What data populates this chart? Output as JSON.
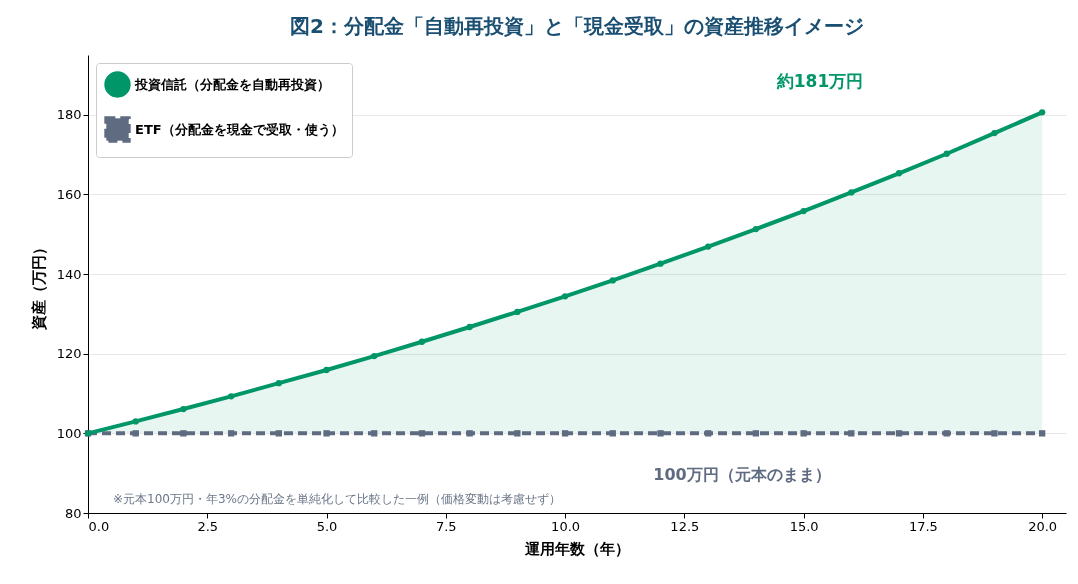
{
  "chart_data": {
    "type": "line",
    "title": "図2：分配金「自動再投資」と「現金受取」の資産推移イメージ",
    "xlabel": "運用年数（年）",
    "ylabel": "資産（万円）",
    "x": [
      0,
      1,
      2,
      3,
      4,
      5,
      6,
      7,
      8,
      9,
      10,
      11,
      12,
      13,
      14,
      15,
      16,
      17,
      18,
      19,
      20
    ],
    "series": [
      {
        "name": "投資信託（分配金を自動再投資）",
        "color": "#009668",
        "marker": "circle",
        "line_style": "solid",
        "values": [
          100,
          103,
          106.1,
          109.3,
          112.6,
          115.9,
          119.4,
          123,
          126.7,
          130.5,
          134.4,
          138.4,
          142.6,
          146.9,
          151.3,
          155.8,
          160.5,
          165.3,
          170.2,
          175.4,
          180.6
        ],
        "lower": [
          100,
          100,
          100,
          100,
          100,
          100,
          100,
          100,
          100,
          100,
          100,
          100,
          100,
          100,
          100,
          100,
          100,
          100,
          100,
          100,
          100
        ],
        "upper": [
          100,
          103,
          106.1,
          109.3,
          112.6,
          115.9,
          119.4,
          123,
          126.7,
          130.5,
          134.4,
          138.4,
          142.6,
          146.9,
          151.3,
          155.8,
          160.5,
          165.3,
          170.2,
          175.4,
          180.6
        ]
      },
      {
        "name": "ETF（分配金を現金で受取・使う）",
        "color": "#5f6b80",
        "marker": "square",
        "line_style": "dashed",
        "values": [
          100,
          100,
          100,
          100,
          100,
          100,
          100,
          100,
          100,
          100,
          100,
          100,
          100,
          100,
          100,
          100,
          100,
          100,
          100,
          100,
          100
        ]
      }
    ],
    "xlim": [
      0,
      20.5
    ],
    "xticks": [
      {
        "value": 0,
        "label": "0.0"
      },
      {
        "value": 2.5,
        "label": "2.5"
      },
      {
        "value": 5,
        "label": "5.0"
      },
      {
        "value": 7.5,
        "label": "7.5"
      },
      {
        "value": 10,
        "label": "10.0"
      },
      {
        "value": 12.5,
        "label": "12.5"
      },
      {
        "value": 15,
        "label": "15.0"
      },
      {
        "value": 17.5,
        "label": "17.5"
      },
      {
        "value": 20,
        "label": "20.0"
      }
    ],
    "ylim": [
      80,
      195
    ],
    "yticks": [
      80,
      100,
      120,
      140,
      160,
      180
    ],
    "grid": "y",
    "legend": "top left",
    "annotations": [
      "約181万円",
      "100万円（元本のまま）",
      "※元本100万円・年3%の分配金を単純化して比較した一例（価格変動は考慮せず）"
    ]
  }
}
